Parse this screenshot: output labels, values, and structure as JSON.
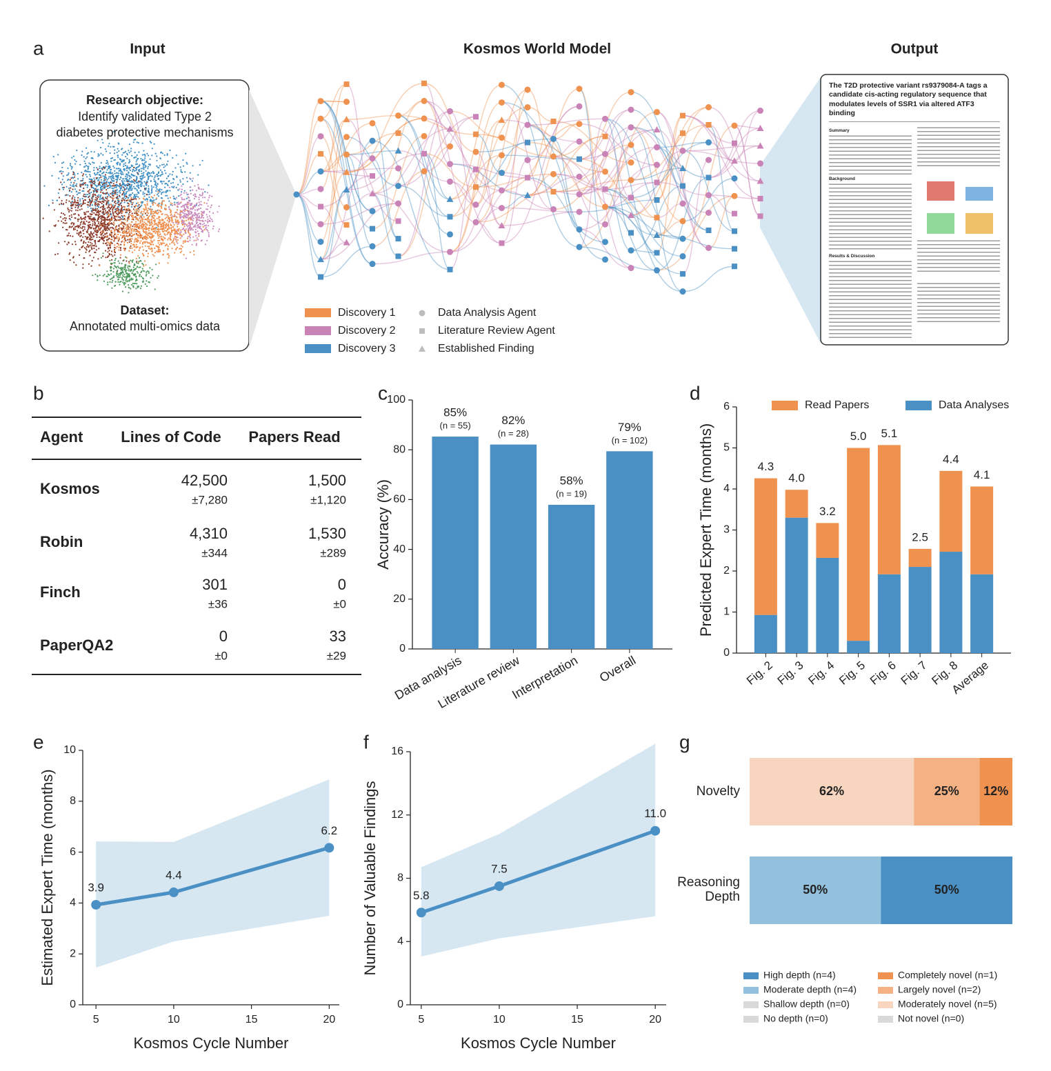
{
  "panel_a": {
    "label": "a",
    "input_title": "Input",
    "model_title": "Kosmos World Model",
    "output_title": "Output",
    "objective_label": "Research objective:",
    "objective_text": [
      "Identify validated Type 2",
      "diabetes protective mechanisms"
    ],
    "dataset_label": "Dataset:",
    "dataset_text": "Annotated multi-omics data",
    "discoveries": [
      {
        "name": "Discovery 1",
        "color": "#f0924f"
      },
      {
        "name": "Discovery 2",
        "color": "#c983b6"
      },
      {
        "name": "Discovery 3",
        "color": "#4a90c4"
      }
    ],
    "agents": [
      "Data Analysis Agent",
      "Literature Review Agent",
      "Established Finding"
    ],
    "paper": {
      "title": "The T2D protective variant rs9379084-A tags a candidate cis-acting regulatory sequence that modulates levels of SSR1 via altered ATF3 binding",
      "sections": [
        "Summary",
        "Background",
        "Results & Discussion"
      ]
    }
  },
  "panel_b": {
    "label": "b",
    "header": [
      "Agent",
      "Lines of Code",
      "Papers Read"
    ],
    "rows": [
      [
        "Kosmos",
        "42,500",
        "±7,280",
        "1,500",
        "±1,120"
      ],
      [
        "Robin",
        "4,310",
        "±344",
        "1,530",
        "±289"
      ],
      [
        "Finch",
        "301",
        "±36",
        "0",
        "±0"
      ],
      [
        "PaperQA2",
        "0",
        "±0",
        "33",
        "±29"
      ]
    ]
  },
  "chart_data": [
    {
      "type": "bar",
      "label": "c",
      "ylabel": "Accuracy (%)",
      "categories": [
        "Data analysis",
        "Literature review",
        "Interpretation",
        "Overall"
      ],
      "values": [
        85.3,
        82.1,
        57.9,
        79.4
      ],
      "value_labels": [
        "85%",
        "82%",
        "58%",
        "79%"
      ],
      "annotations": [
        "(n = 55)",
        "(n = 28)",
        "(n = 19)",
        "(n = 102)"
      ],
      "color": "#4a90c4",
      "ylim": [
        0,
        100
      ],
      "yticks": [
        0,
        20,
        40,
        60,
        80,
        100
      ]
    },
    {
      "type": "stacked_bar",
      "label": "d",
      "ylabel": "Predicted Expert Time (months)",
      "categories": [
        "Fig. 2",
        "Fig. 3",
        "Fig. 4",
        "Fig. 5",
        "Fig. 6",
        "Fig. 7",
        "Fig. 8",
        "Average"
      ],
      "series": [
        {
          "name": "Read Papers",
          "color": "#f0924f",
          "values": [
            3.33,
            0.68,
            0.85,
            4.7,
            3.15,
            0.44,
            1.97,
            2.14
          ]
        },
        {
          "name": "Data Analyses",
          "color": "#4a90c4",
          "values": [
            0.93,
            3.3,
            2.32,
            0.3,
            1.92,
            2.1,
            2.47,
            1.92
          ]
        }
      ],
      "total_labels": [
        "4.3",
        "4.0",
        "3.2",
        "5.0",
        "5.1",
        "2.5",
        "4.4",
        "4.1"
      ],
      "ylim": [
        0,
        6
      ],
      "yticks": [
        0,
        1,
        2,
        3,
        4,
        5,
        6
      ],
      "legend": "top"
    },
    {
      "type": "line",
      "label": "e",
      "xlabel": "Kosmos Cycle Number",
      "ylabel": "Estimated Expert Time (months)",
      "x": [
        5,
        10,
        20
      ],
      "values": [
        3.93,
        4.42,
        6.17
      ],
      "value_labels": [
        "3.9",
        "4.4",
        "6.2"
      ],
      "band": {
        "lower": [
          1.46,
          2.49,
          3.5
        ],
        "upper": [
          6.42,
          6.4,
          8.86
        ]
      },
      "color": "#4a90c4",
      "band_color": "#d6e7f2",
      "xlim": [
        4.15,
        20.65
      ],
      "xticks": [
        5,
        10,
        15,
        20
      ],
      "ylim": [
        0,
        10
      ],
      "yticks": [
        0,
        2,
        4,
        6,
        8,
        10
      ]
    },
    {
      "type": "line",
      "label": "f",
      "xlabel": "Kosmos Cycle Number",
      "ylabel": "Number of Valuable Findings",
      "x": [
        5,
        10,
        20
      ],
      "values": [
        5.83,
        7.5,
        11.0
      ],
      "value_labels": [
        "5.8",
        "7.5",
        "11.0"
      ],
      "band": {
        "lower": [
          3.05,
          4.2,
          5.6
        ],
        "upper": [
          8.7,
          10.8,
          16.5
        ]
      },
      "color": "#4a90c4",
      "band_color": "#d6e7f2",
      "xlim": [
        4.3,
        20.7
      ],
      "xticks": [
        5,
        10,
        15,
        20
      ],
      "ylim": [
        0,
        16
      ],
      "yticks": [
        0,
        4,
        8,
        12,
        16
      ]
    },
    {
      "type": "stacked_barh",
      "label": "g",
      "categories": [
        "Novelty",
        "Reasoning Depth"
      ],
      "series": [
        {
          "name": "High depth (n=4)",
          "color": "#4a90c4",
          "values": [
            null,
            50
          ],
          "value_labels": [
            null,
            "50%"
          ]
        },
        {
          "name": "Moderate depth (n=4)",
          "color": "#93c0dc",
          "values": [
            null,
            50
          ],
          "value_labels": [
            null,
            "50%"
          ]
        },
        {
          "name": "Shallow depth (n=0)",
          "color": "#d9d9d9",
          "values": [
            null,
            0
          ]
        },
        {
          "name": "No depth (n=0)",
          "color": "#d9d9d9",
          "values": [
            null,
            0
          ]
        },
        {
          "name": "Completely novel (n=1)",
          "color": "#f0924f",
          "values": [
            12.5,
            null
          ],
          "value_labels": [
            "12%",
            null
          ]
        },
        {
          "name": "Largely novel (n=2)",
          "color": "#f4b183",
          "values": [
            25,
            null
          ],
          "value_labels": [
            "25%",
            null
          ]
        },
        {
          "name": "Moderately novel (n=5)",
          "color": "#f8d5bf",
          "values": [
            62.5,
            null
          ],
          "value_labels": [
            "62%",
            null
          ]
        },
        {
          "name": "Not novel (n=0)",
          "color": "#d9d9d9",
          "values": [
            0,
            null
          ]
        }
      ],
      "xlim": [
        0,
        100
      ]
    }
  ]
}
